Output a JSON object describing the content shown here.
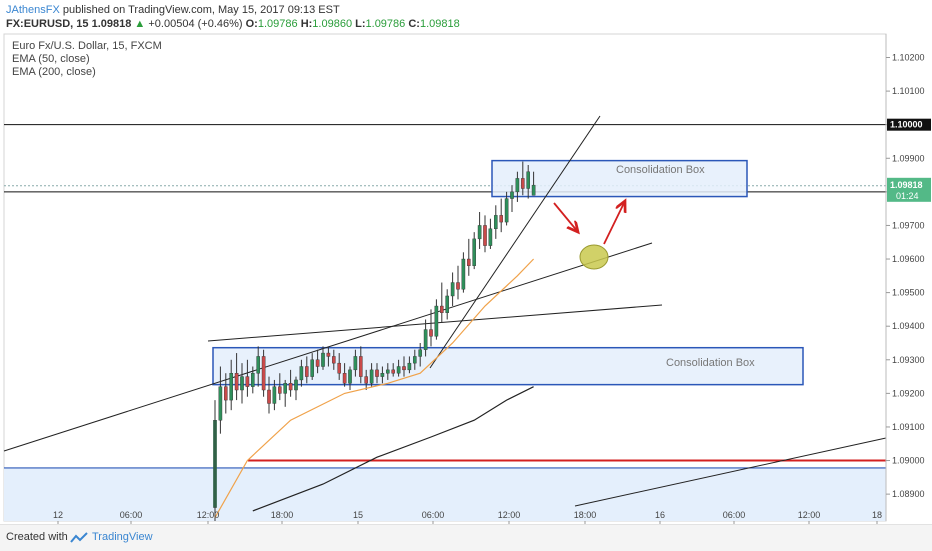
{
  "header": {
    "author": "JAthensFX",
    "published_text": " published on TradingView.com, May 15, 2017 09:13 EST",
    "symbol": "FX:EURUSD, 15",
    "last": "1.09818",
    "change_arrow": "▲",
    "change": "+0.00504 (+0.46%)",
    "o_label": "O:",
    "o_value": "1.09786",
    "h_label": "H:",
    "h_value": "1.09860",
    "l_label": "L:",
    "l_value": "1.09786",
    "c_label": "C:",
    "c_value": "1.09818"
  },
  "legend": {
    "instrument": "Euro Fx/U.S. Dollar, 15, FXCM",
    "ema1": "EMA (50, close)",
    "ema2": "EMA (200, close)"
  },
  "footer": {
    "created_with": "Created with",
    "brand": "TradingView"
  },
  "colors": {
    "bull": "#2f8f5b",
    "bear": "#c94a4a",
    "ema50": "#f0a24a",
    "ema200": "#222222",
    "box_stroke": "#2b57b8",
    "box_fill": "#e4effc",
    "support_line": "#d32020",
    "arrow": "#d32020",
    "ellipse": "#c9c94d"
  },
  "chart_data": {
    "type": "candlestick",
    "symbol": "EURUSD",
    "interval": "15",
    "ylim": [
      1.0882,
      1.1027
    ],
    "y_ticks": [
      "1.10200",
      "1.10100",
      "1.10000",
      "1.09900",
      "1.09800",
      "1.09700",
      "1.09600",
      "1.09500",
      "1.09400",
      "1.09300",
      "1.09200",
      "1.09100",
      "1.09000",
      "1.08900"
    ],
    "x_ticks": [
      "12",
      "06:00",
      "12:00",
      "18:00",
      "15",
      "06:00",
      "12:00",
      "18:00",
      "16",
      "06:00",
      "12:00",
      "18"
    ],
    "price_labels": {
      "current": "1.09818",
      "countdown": "01:24",
      "level_1": "1.10000",
      "level_2": "1.09800"
    },
    "annotations": {
      "box_upper_label": "Consolidation Box",
      "box_lower_label": "Consolidation Box"
    },
    "levels": [
      1.1,
      1.098,
      1.09
    ],
    "ohlc": [
      [
        1.0886,
        1.0918,
        1.0882,
        1.0912
      ],
      [
        1.0912,
        1.0928,
        1.0908,
        1.0922
      ],
      [
        1.0922,
        1.0926,
        1.0914,
        1.0918
      ],
      [
        1.0918,
        1.093,
        1.0915,
        1.0926
      ],
      [
        1.0926,
        1.0932,
        1.0918,
        1.0921
      ],
      [
        1.0921,
        1.0929,
        1.0917,
        1.0925
      ],
      [
        1.0925,
        1.093,
        1.0919,
        1.0922
      ],
      [
        1.0922,
        1.0928,
        1.092,
        1.0926
      ],
      [
        1.0926,
        1.0934,
        1.0922,
        1.0931
      ],
      [
        1.0931,
        1.0933,
        1.0919,
        1.0921
      ],
      [
        1.0921,
        1.0925,
        1.0914,
        1.0917
      ],
      [
        1.0917,
        1.0924,
        1.0915,
        1.0922
      ],
      [
        1.0922,
        1.0926,
        1.0918,
        1.092
      ],
      [
        1.092,
        1.0924,
        1.0916,
        1.0923
      ],
      [
        1.0923,
        1.0927,
        1.0919,
        1.0921
      ],
      [
        1.0921,
        1.0925,
        1.0918,
        1.0924
      ],
      [
        1.0924,
        1.093,
        1.0922,
        1.0928
      ],
      [
        1.0928,
        1.0931,
        1.0923,
        1.0925
      ],
      [
        1.0925,
        1.0932,
        1.0924,
        1.093
      ],
      [
        1.093,
        1.0933,
        1.0926,
        1.0928
      ],
      [
        1.0928,
        1.0934,
        1.0927,
        1.0932
      ],
      [
        1.0932,
        1.0934,
        1.0928,
        1.0931
      ],
      [
        1.0931,
        1.0933,
        1.0927,
        1.0929
      ],
      [
        1.0929,
        1.0932,
        1.0924,
        1.0926
      ],
      [
        1.0926,
        1.0929,
        1.0922,
        1.0923
      ],
      [
        1.0923,
        1.0928,
        1.0921,
        1.0927
      ],
      [
        1.0927,
        1.0933,
        1.0925,
        1.0931
      ],
      [
        1.0931,
        1.0934,
        1.0923,
        1.0925
      ],
      [
        1.0925,
        1.0927,
        1.0921,
        1.0923
      ],
      [
        1.0923,
        1.0929,
        1.0922,
        1.0927
      ],
      [
        1.0927,
        1.0929,
        1.0923,
        1.0925
      ],
      [
        1.0925,
        1.0928,
        1.0923,
        1.0926
      ],
      [
        1.0926,
        1.0929,
        1.0924,
        1.0927
      ],
      [
        1.0927,
        1.0929,
        1.0925,
        1.0926
      ],
      [
        1.0926,
        1.093,
        1.0925,
        1.0928
      ],
      [
        1.0928,
        1.0931,
        1.0925,
        1.0927
      ],
      [
        1.0927,
        1.0931,
        1.0926,
        1.0929
      ],
      [
        1.0929,
        1.0933,
        1.0927,
        1.0931
      ],
      [
        1.0931,
        1.0935,
        1.0928,
        1.0933
      ],
      [
        1.0933,
        1.0942,
        1.0931,
        1.0939
      ],
      [
        1.0939,
        1.0945,
        1.0934,
        1.0937
      ],
      [
        1.0937,
        1.0948,
        1.0936,
        1.0946
      ],
      [
        1.0946,
        1.0953,
        1.0941,
        1.0944
      ],
      [
        1.0944,
        1.0951,
        1.0942,
        1.0949
      ],
      [
        1.0949,
        1.0956,
        1.0946,
        1.0953
      ],
      [
        1.0953,
        1.0958,
        1.0948,
        1.0951
      ],
      [
        1.0951,
        1.0962,
        1.095,
        1.096
      ],
      [
        1.096,
        1.0966,
        1.0955,
        1.0958
      ],
      [
        1.0958,
        1.0968,
        1.0957,
        1.0966
      ],
      [
        1.0966,
        1.0974,
        1.0963,
        1.097
      ],
      [
        1.097,
        1.0973,
        1.0962,
        1.0964
      ],
      [
        1.0964,
        1.0972,
        1.0963,
        1.0969
      ],
      [
        1.0969,
        1.0976,
        1.0966,
        1.0973
      ],
      [
        1.0973,
        1.0978,
        1.0968,
        1.0971
      ],
      [
        1.0971,
        1.098,
        1.097,
        1.0978
      ],
      [
        1.0978,
        1.0982,
        1.0974,
        1.098
      ],
      [
        1.098,
        1.0986,
        1.0977,
        1.0984
      ],
      [
        1.0984,
        1.0989,
        1.0979,
        1.0981
      ],
      [
        1.0981,
        1.0988,
        1.0978,
        1.0986
      ],
      [
        1.0979,
        1.0986,
        1.0979,
        1.0982
      ]
    ],
    "ema50": [
      [
        0,
        1.0883
      ],
      [
        6,
        1.09
      ],
      [
        14,
        1.0912
      ],
      [
        24,
        1.092
      ],
      [
        32,
        1.0923
      ],
      [
        38,
        1.0926
      ],
      [
        44,
        1.0935
      ],
      [
        50,
        1.0946
      ],
      [
        56,
        1.0955
      ],
      [
        59,
        1.096
      ]
    ],
    "ema200": [
      [
        7,
        1.0885
      ],
      [
        20,
        1.0893
      ],
      [
        30,
        1.0901
      ],
      [
        40,
        1.0907
      ],
      [
        48,
        1.0912
      ],
      [
        54,
        1.0918
      ],
      [
        59,
        1.0922
      ]
    ]
  }
}
